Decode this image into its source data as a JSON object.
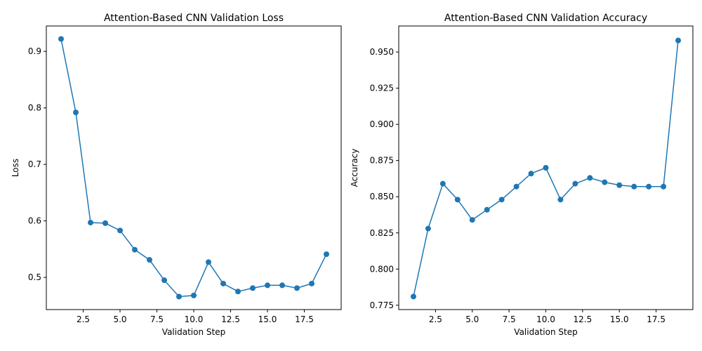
{
  "colors": {
    "series": "#1f77b4"
  },
  "chart_data": [
    {
      "type": "line",
      "title": "Attention-Based CNN Validation Loss",
      "xlabel": "Validation Step",
      "ylabel": "Loss",
      "grid": false,
      "xlim": [
        0,
        20
      ],
      "ylim": [
        0.443,
        0.945
      ],
      "xticks": [
        2.5,
        5.0,
        7.5,
        10.0,
        12.5,
        15.0,
        17.5
      ],
      "xtick_labels": [
        "2.5",
        "5.0",
        "7.5",
        "10.0",
        "12.5",
        "15.0",
        "17.5"
      ],
      "yticks": [
        0.5,
        0.6,
        0.7,
        0.8,
        0.9
      ],
      "ytick_labels": [
        "0.5",
        "0.6",
        "0.7",
        "0.8",
        "0.9"
      ],
      "series": [
        {
          "x": [
            1,
            2,
            3,
            4,
            5,
            6,
            7,
            8,
            9,
            10,
            11,
            12,
            13,
            14,
            15,
            16,
            17,
            18,
            19
          ],
          "values": [
            0.922,
            0.792,
            0.597,
            0.596,
            0.583,
            0.549,
            0.531,
            0.495,
            0.466,
            0.468,
            0.527,
            0.489,
            0.475,
            0.481,
            0.486,
            0.486,
            0.481,
            0.489,
            0.541
          ]
        }
      ]
    },
    {
      "type": "line",
      "title": "Attention-Based CNN Validation Accuracy",
      "xlabel": "Validation Step",
      "ylabel": "Accuracy",
      "grid": false,
      "xlim": [
        0,
        20
      ],
      "ylim": [
        0.772,
        0.968
      ],
      "xticks": [
        2.5,
        5.0,
        7.5,
        10.0,
        12.5,
        15.0,
        17.5
      ],
      "xtick_labels": [
        "2.5",
        "5.0",
        "7.5",
        "10.0",
        "12.5",
        "15.0",
        "17.5"
      ],
      "yticks": [
        0.775,
        0.8,
        0.825,
        0.85,
        0.875,
        0.9,
        0.925,
        0.95
      ],
      "ytick_labels": [
        "0.775",
        "0.800",
        "0.825",
        "0.850",
        "0.875",
        "0.900",
        "0.925",
        "0.950"
      ],
      "series": [
        {
          "x": [
            1,
            2,
            3,
            4,
            5,
            6,
            7,
            8,
            9,
            10,
            11,
            12,
            13,
            14,
            15,
            16,
            17,
            18,
            19
          ],
          "values": [
            0.781,
            0.828,
            0.859,
            0.848,
            0.834,
            0.841,
            0.848,
            0.857,
            0.866,
            0.87,
            0.848,
            0.859,
            0.863,
            0.86,
            0.858,
            0.857,
            0.857,
            0.857,
            0.958
          ]
        }
      ]
    }
  ]
}
